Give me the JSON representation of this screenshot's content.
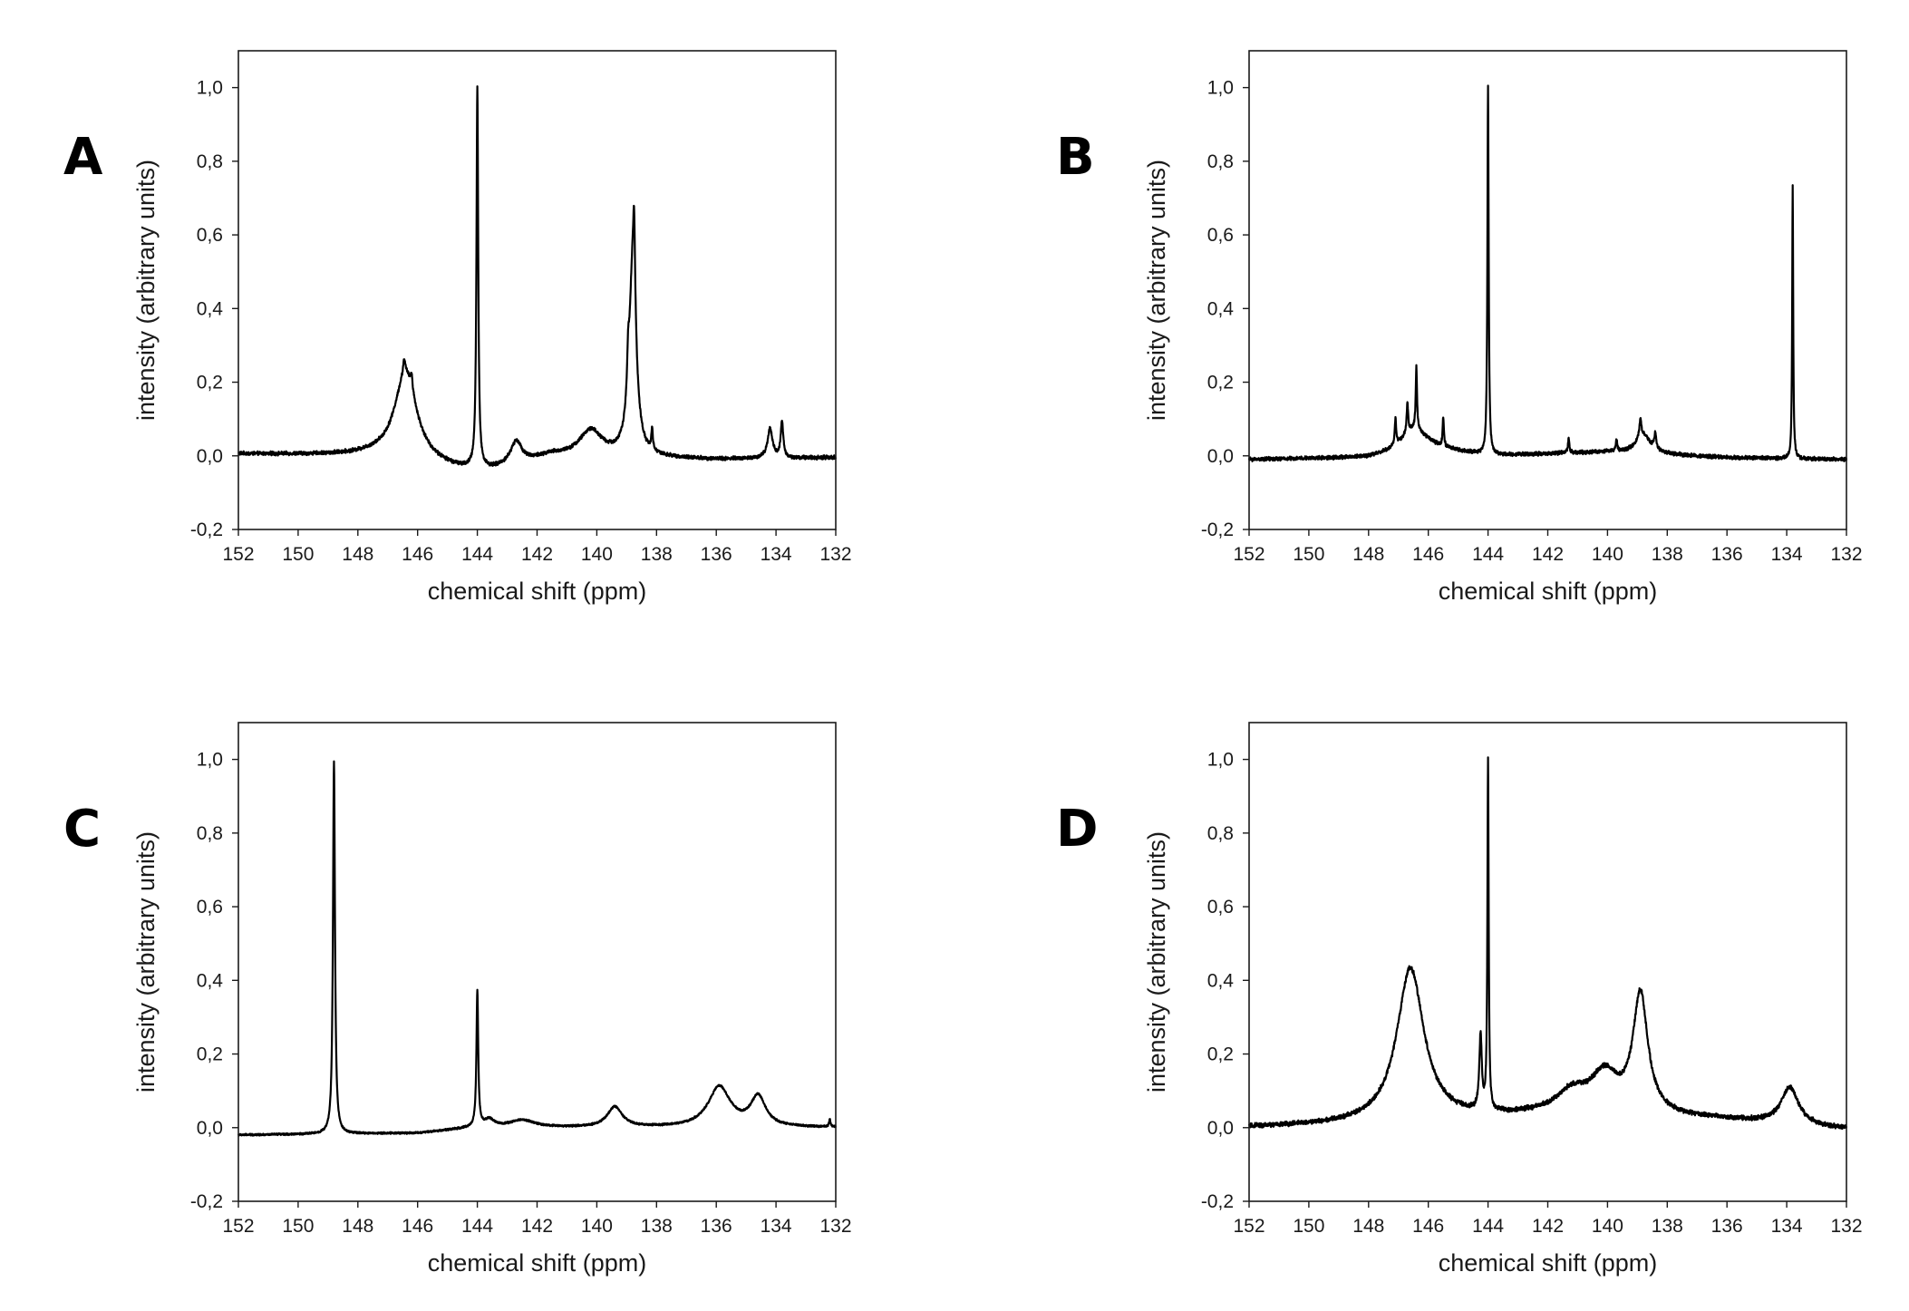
{
  "chart_data": [
    {
      "panel": "A",
      "type": "line",
      "xlabel": "chemical shift (ppm)",
      "ylabel": "intensity (arbitrary units)",
      "xlim": [
        152,
        132
      ],
      "ylim": [
        -0.2,
        1.1
      ],
      "x_ticks": [
        "152",
        "150",
        "148",
        "146",
        "144",
        "142",
        "140",
        "138",
        "136",
        "134",
        "132"
      ],
      "y_ticks": [
        "-0,2",
        "0,0",
        "0,2",
        "0,4",
        "0,6",
        "0,8",
        "1,0"
      ],
      "noise": 0.004,
      "baseline": [
        [
          152,
          0.005
        ],
        [
          147.5,
          0.0
        ],
        [
          144.5,
          -0.04
        ],
        [
          143.5,
          -0.04
        ],
        [
          141.5,
          0.0
        ],
        [
          136,
          -0.01
        ],
        [
          132,
          -0.005
        ]
      ],
      "peaks": [
        {
          "center": 146.4,
          "height": 0.24,
          "width": 0.45
        },
        {
          "center": 146.45,
          "height": 0.04,
          "width": 0.04
        },
        {
          "center": 146.2,
          "height": 0.04,
          "width": 0.04
        },
        {
          "center": 144.0,
          "height": 1.03,
          "width": 0.035
        },
        {
          "center": 142.7,
          "height": 0.06,
          "width": 0.22
        },
        {
          "center": 140.2,
          "height": 0.07,
          "width": 0.45
        },
        {
          "center": 138.8,
          "height": 0.5,
          "width": 0.14
        },
        {
          "center": 138.75,
          "height": 0.22,
          "width": 0.04
        },
        {
          "center": 138.95,
          "height": 0.1,
          "width": 0.04
        },
        {
          "center": 138.15,
          "height": 0.06,
          "width": 0.03
        },
        {
          "center": 134.2,
          "height": 0.08,
          "width": 0.1
        },
        {
          "center": 133.8,
          "height": 0.1,
          "width": 0.05
        }
      ]
    },
    {
      "panel": "B",
      "type": "line",
      "xlabel": "chemical shift (ppm)",
      "ylabel": "intensity (arbitrary units)",
      "xlim": [
        152,
        132
      ],
      "ylim": [
        -0.2,
        1.1
      ],
      "x_ticks": [
        "152",
        "150",
        "148",
        "146",
        "144",
        "142",
        "140",
        "138",
        "136",
        "134",
        "132"
      ],
      "y_ticks": [
        "-0,2",
        "0,0",
        "0,2",
        "0,4",
        "0,6",
        "0,8",
        "1,0"
      ],
      "noise": 0.004,
      "baseline": [
        [
          152,
          -0.01
        ],
        [
          148,
          -0.005
        ],
        [
          146,
          0.02
        ],
        [
          144,
          0.0
        ],
        [
          140,
          0.01
        ],
        [
          136,
          -0.005
        ],
        [
          132,
          -0.01
        ]
      ],
      "peaks": [
        {
          "center": 146.5,
          "height": 0.06,
          "width": 0.5
        },
        {
          "center": 147.1,
          "height": 0.07,
          "width": 0.03
        },
        {
          "center": 146.7,
          "height": 0.08,
          "width": 0.03
        },
        {
          "center": 146.4,
          "height": 0.17,
          "width": 0.025
        },
        {
          "center": 145.5,
          "height": 0.08,
          "width": 0.025
        },
        {
          "center": 144.0,
          "height": 1.0,
          "width": 0.025
        },
        {
          "center": 141.3,
          "height": 0.04,
          "width": 0.03
        },
        {
          "center": 139.7,
          "height": 0.03,
          "width": 0.03
        },
        {
          "center": 138.8,
          "height": 0.05,
          "width": 0.3
        },
        {
          "center": 138.9,
          "height": 0.05,
          "width": 0.04
        },
        {
          "center": 138.4,
          "height": 0.04,
          "width": 0.04
        },
        {
          "center": 133.8,
          "height": 0.74,
          "width": 0.02
        }
      ]
    },
    {
      "panel": "C",
      "type": "line",
      "xlabel": "chemical shift (ppm)",
      "ylabel": "intensity (arbitrary units)",
      "xlim": [
        152,
        132
      ],
      "ylim": [
        -0.2,
        1.1
      ],
      "x_ticks": [
        "152",
        "150",
        "148",
        "146",
        "144",
        "142",
        "140",
        "138",
        "136",
        "134",
        "132"
      ],
      "y_ticks": [
        "-0,2",
        "0,0",
        "0,2",
        "0,4",
        "0,6",
        "0,8",
        "1,0"
      ],
      "noise": 0.002,
      "baseline": [
        [
          152,
          -0.02
        ],
        [
          146,
          -0.015
        ],
        [
          144,
          0.0
        ],
        [
          141,
          0.0
        ],
        [
          132,
          0.0
        ]
      ],
      "peaks": [
        {
          "center": 148.8,
          "height": 1.01,
          "width": 0.04
        },
        {
          "center": 144.0,
          "height": 0.37,
          "width": 0.035
        },
        {
          "center": 143.6,
          "height": 0.02,
          "width": 0.2
        },
        {
          "center": 142.5,
          "height": 0.02,
          "width": 0.5
        },
        {
          "center": 139.4,
          "height": 0.055,
          "width": 0.3
        },
        {
          "center": 135.9,
          "height": 0.11,
          "width": 0.45
        },
        {
          "center": 134.6,
          "height": 0.08,
          "width": 0.3
        },
        {
          "center": 132.2,
          "height": 0.02,
          "width": 0.03
        }
      ]
    },
    {
      "panel": "D",
      "type": "line",
      "xlabel": "chemical shift (ppm)",
      "ylabel": "intensity (arbitrary units)",
      "xlim": [
        152,
        132
      ],
      "ylim": [
        -0.2,
        1.1
      ],
      "x_ticks": [
        "152",
        "150",
        "148",
        "146",
        "144",
        "142",
        "140",
        "138",
        "136",
        "134",
        "132"
      ],
      "y_ticks": [
        "-0,2",
        "0,0",
        "0,2",
        "0,4",
        "0,6",
        "0,8",
        "1,0"
      ],
      "noise": 0.005,
      "baseline": [
        [
          152,
          0.0
        ],
        [
          147,
          0.01
        ],
        [
          143,
          0.03
        ],
        [
          141,
          0.04
        ],
        [
          136,
          0.02
        ],
        [
          132,
          -0.005
        ]
      ],
      "peaks": [
        {
          "center": 146.6,
          "height": 0.42,
          "width": 0.55
        },
        {
          "center": 144.25,
          "height": 0.2,
          "width": 0.05
        },
        {
          "center": 144.0,
          "height": 0.95,
          "width": 0.025
        },
        {
          "center": 141.2,
          "height": 0.05,
          "width": 0.6
        },
        {
          "center": 140.1,
          "height": 0.1,
          "width": 0.55
        },
        {
          "center": 138.9,
          "height": 0.32,
          "width": 0.3
        },
        {
          "center": 133.9,
          "height": 0.1,
          "width": 0.35
        }
      ]
    }
  ]
}
